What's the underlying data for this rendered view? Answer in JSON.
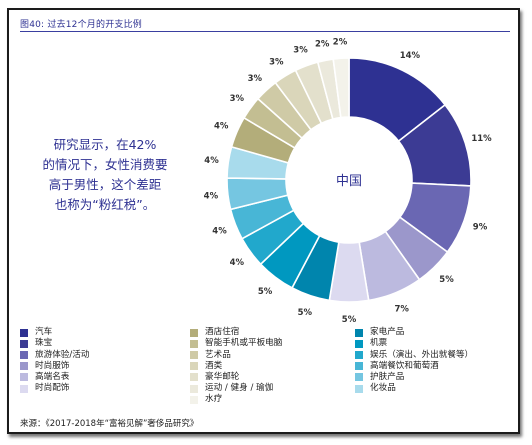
{
  "figure": {
    "title": "图40: 过去12个月的开支比例",
    "source": "来源：《2017-2018年“富裕见解”奢侈品研究》"
  },
  "annotation": {
    "lines": [
      "研究显示，在42%",
      "的情况下，女性消费要",
      "高于男性，这个差距",
      "也称为“粉红税”。"
    ]
  },
  "chart_data": {
    "type": "pie",
    "center_label": "中国",
    "slices": [
      {
        "value": 14,
        "label": "14%",
        "color": "#2e3192"
      },
      {
        "value": 11,
        "label": "11%",
        "color": "#3c3b94"
      },
      {
        "value": 9,
        "label": "9%",
        "color": "#6a67b3"
      },
      {
        "value": 5,
        "label": "5%",
        "color": "#9b97cb"
      },
      {
        "value": 7,
        "label": "7%",
        "color": "#bcbadf"
      },
      {
        "value": 5,
        "label": "5%",
        "color": "#dcdaf0"
      },
      {
        "value": 5,
        "label": "5%",
        "color": "#0085ad"
      },
      {
        "value": 5,
        "label": "5%",
        "color": "#0098c0"
      },
      {
        "value": 4,
        "label": "4%",
        "color": "#21a8cc"
      },
      {
        "value": 4,
        "label": "4%",
        "color": "#48b6d6"
      },
      {
        "value": 4,
        "label": "4%",
        "color": "#75c6e1"
      },
      {
        "value": 4,
        "label": "4%",
        "color": "#a8dbec"
      },
      {
        "value": 4,
        "label": "4%",
        "color": "#b3ad7a"
      },
      {
        "value": 3,
        "label": "3%",
        "color": "#c3be92"
      },
      {
        "value": 3,
        "label": "3%",
        "color": "#cfcaa6"
      },
      {
        "value": 3,
        "label": "3%",
        "color": "#dad6ba"
      },
      {
        "value": 3,
        "label": "3%",
        "color": "#e3e0cc"
      },
      {
        "value": 2,
        "label": "2%",
        "color": "#ebe9dc"
      },
      {
        "value": 2,
        "label": "2%",
        "color": "#f3f2ea"
      }
    ],
    "legend": {
      "placement": "bottom",
      "columns": [
        [
          {
            "label": "汽车",
            "color": "#2e3192"
          },
          {
            "label": "珠宝",
            "color": "#3c3b94"
          },
          {
            "label": "旅游体验/活动",
            "color": "#6a67b3"
          },
          {
            "label": "时尚服饰",
            "color": "#9b97cb"
          },
          {
            "label": "高端名表",
            "color": "#bcbadf"
          },
          {
            "label": "时尚配饰",
            "color": "#dcdaf0"
          }
        ],
        [
          {
            "label": "酒店住宿",
            "color": "#b3ad7a"
          },
          {
            "label": "智能手机或平板电脑",
            "color": "#c3be92"
          },
          {
            "label": "艺术品",
            "color": "#cfcaa6"
          },
          {
            "label": "酒类",
            "color": "#dad6ba"
          },
          {
            "label": "豪华邮轮",
            "color": "#e3e0cc"
          },
          {
            "label": "运动 / 健身 / 瑜伽",
            "color": "#ebe9dc"
          },
          {
            "label": "水疗",
            "color": "#f3f2ea"
          }
        ],
        [
          {
            "label": "家电产品",
            "color": "#0085ad"
          },
          {
            "label": "机票",
            "color": "#0098c0"
          },
          {
            "label": "娱乐（演出、外出就餐等）",
            "color": "#21a8cc"
          },
          {
            "label": "高端餐饮和葡萄酒",
            "color": "#48b6d6"
          },
          {
            "label": "护肤产品",
            "color": "#75c6e1"
          },
          {
            "label": "化妆品",
            "color": "#a8dbec"
          }
        ]
      ]
    }
  }
}
